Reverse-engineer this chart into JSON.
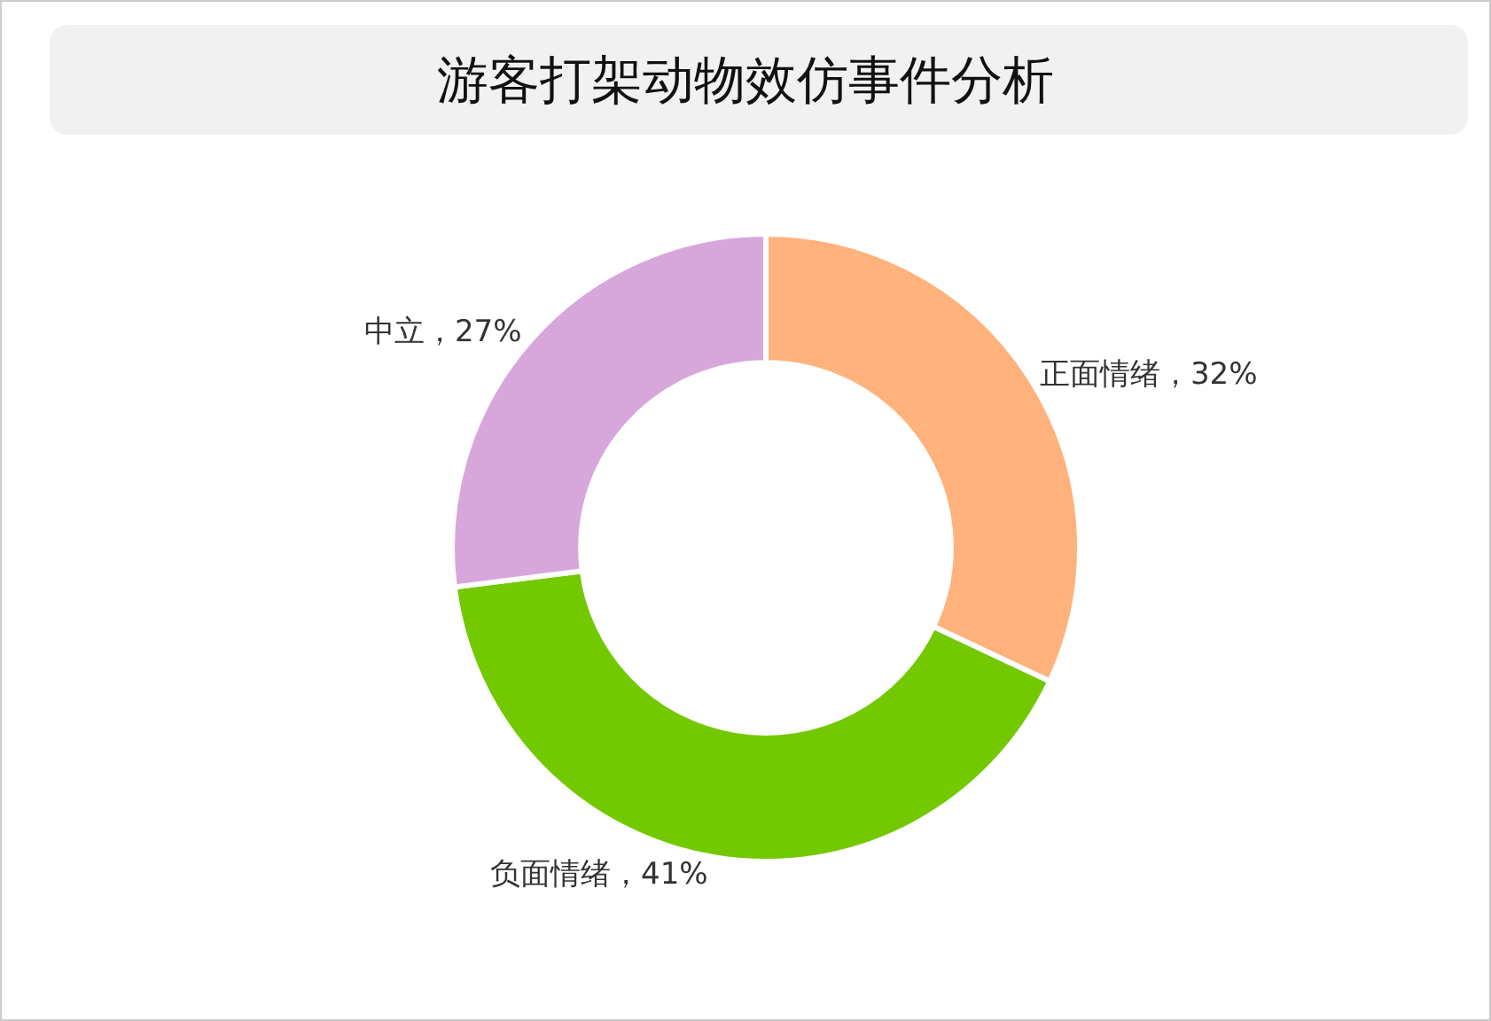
{
  "chart_data": {
    "type": "donut",
    "title": "游客打架动物效仿事件分析",
    "categories": [
      "正面情绪",
      "负面情绪",
      "中立"
    ],
    "values": [
      32,
      41,
      27
    ],
    "colors": [
      "#ffb27c",
      "#73c900",
      "#d7a7dc"
    ],
    "value_labels": [
      "32%",
      "41%",
      "27%"
    ],
    "legend": false
  }
}
